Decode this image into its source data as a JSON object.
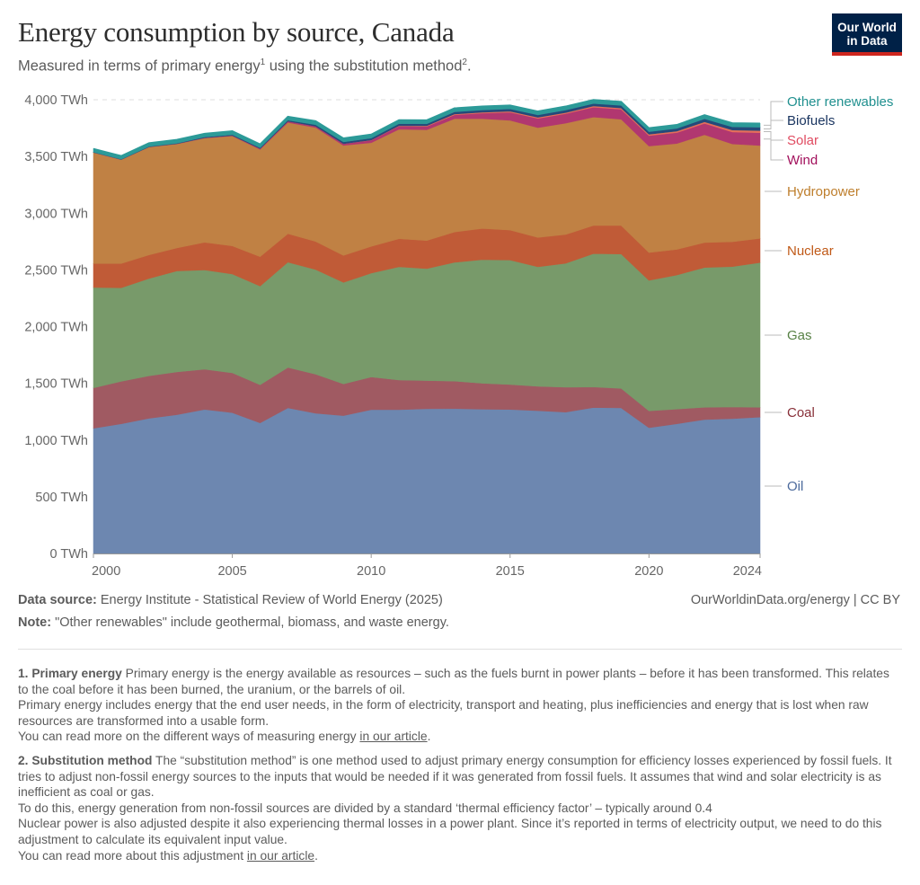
{
  "header": {
    "title": "Energy consumption by source, Canada",
    "subtitle_part1": "Measured in terms of primary energy",
    "subtitle_sup1": "1",
    "subtitle_part2": " using the substitution method",
    "subtitle_sup2": "2",
    "subtitle_part3": ".",
    "logo_line1": "Our World",
    "logo_line2": "in Data",
    "logo_colors": {
      "background": "#002147",
      "accent": "#ce261e"
    }
  },
  "chart_data": {
    "type": "area",
    "stacked": true,
    "title": "Energy consumption by source, Canada",
    "xlabel": "",
    "ylabel": "",
    "unit": "TWh",
    "x": [
      2000,
      2001,
      2002,
      2003,
      2004,
      2005,
      2006,
      2007,
      2008,
      2009,
      2010,
      2011,
      2012,
      2013,
      2014,
      2015,
      2016,
      2017,
      2018,
      2019,
      2020,
      2021,
      2022,
      2023,
      2024
    ],
    "xlim": [
      2000,
      2024
    ],
    "ylim": [
      0,
      4000
    ],
    "x_ticks": [
      "2000",
      "2005",
      "2010",
      "2015",
      "2020",
      "2024"
    ],
    "x_tick_values": [
      2000,
      2005,
      2010,
      2015,
      2020,
      2024
    ],
    "y_ticks": [
      "0 TWh",
      "500 TWh",
      "1,000 TWh",
      "1,500 TWh",
      "2,000 TWh",
      "2,500 TWh",
      "3,000 TWh",
      "3,500 TWh",
      "4,000 TWh"
    ],
    "y_tick_values": [
      0,
      500,
      1000,
      1500,
      2000,
      2500,
      3000,
      3500,
      4000
    ],
    "grid": "horizontal-dashed",
    "legend_position": "right",
    "series": [
      {
        "name": "Oil",
        "color": "#6d87b0",
        "label_color": "#4c6a9c",
        "values": [
          1103,
          1143,
          1191,
          1223,
          1270,
          1241,
          1151,
          1283,
          1236,
          1215,
          1267,
          1267,
          1275,
          1277,
          1272,
          1270,
          1259,
          1246,
          1286,
          1283,
          1109,
          1143,
          1180,
          1188,
          1202
        ]
      },
      {
        "name": "Coal",
        "color": "#a05a62",
        "label_color": "#883039",
        "values": [
          357,
          375,
          375,
          377,
          354,
          351,
          336,
          357,
          344,
          280,
          289,
          262,
          249,
          242,
          228,
          219,
          214,
          219,
          182,
          172,
          148,
          130,
          109,
          104,
          87
        ]
      },
      {
        "name": "Gas",
        "color": "#789a6a",
        "label_color": "#578145",
        "values": [
          885,
          824,
          858,
          890,
          876,
          871,
          870,
          928,
          923,
          895,
          915,
          998,
          987,
          1047,
          1090,
          1098,
          1054,
          1093,
          1175,
          1185,
          1151,
          1182,
          1232,
          1237,
          1275
        ]
      },
      {
        "name": "Nuclear",
        "color": "#c05b37",
        "label_color": "#c05917",
        "values": [
          211,
          214,
          208,
          203,
          243,
          248,
          259,
          251,
          248,
          237,
          236,
          248,
          248,
          268,
          275,
          264,
          259,
          254,
          248,
          251,
          245,
          225,
          220,
          219,
          214
        ]
      },
      {
        "name": "Hydropower",
        "color": "#c08144",
        "label_color": "#be7e2c",
        "values": [
          979,
          916,
          951,
          917,
          919,
          970,
          946,
          981,
          1004,
          971,
          914,
          965,
          976,
          999,
          968,
          968,
          968,
          981,
          956,
          937,
          938,
          934,
          950,
          862,
          819
        ]
      },
      {
        "name": "Wind",
        "color": "#b13770",
        "label_color": "#a2105c",
        "values": [
          1,
          1,
          1,
          2,
          3,
          4,
          7,
          10,
          11,
          14,
          22,
          28,
          30,
          34,
          49,
          71,
          81,
          84,
          87,
          88,
          93,
          96,
          100,
          106,
          112
        ]
      },
      {
        "name": "Solar",
        "color": "#e56e5a",
        "label_color": "#e04b61",
        "values": [
          0,
          0,
          0,
          0,
          0,
          0,
          0,
          0,
          0,
          1,
          2,
          3,
          5,
          7,
          8,
          9,
          10,
          10,
          11,
          11,
          12,
          13,
          14,
          17,
          19
        ]
      },
      {
        "name": "Biofuels",
        "color": "#24497a",
        "label_color": "#1a3560",
        "values": [
          2,
          3,
          4,
          5,
          6,
          7,
          8,
          10,
          14,
          15,
          17,
          18,
          18,
          19,
          20,
          20,
          21,
          22,
          22,
          23,
          22,
          24,
          27,
          28,
          30
        ]
      },
      {
        "name": "Other renewables",
        "color": "#2c9a98",
        "label_color": "#20908f",
        "values": [
          30,
          30,
          31,
          31,
          31,
          32,
          32,
          32,
          33,
          33,
          33,
          33,
          33,
          33,
          33,
          33,
          33,
          33,
          33,
          33,
          33,
          33,
          34,
          34,
          34
        ]
      }
    ]
  },
  "footer": {
    "source_label": "Data source:",
    "source_text": " Energy Institute - Statistical Review of World Energy (2025)",
    "url_text": "OurWorldinData.org/energy | CC BY",
    "note_label": "Note:",
    "note_text": " \"Other renewables\" include geothermal, biomass, and waste energy."
  },
  "notes": {
    "n1_title": "1. Primary energy",
    "n1_p1": " Primary energy is the energy available as resources – such as the fuels burnt in power plants – before it has been transformed. This relates to the coal before it has been burned, the uranium, or the barrels of oil.",
    "n1_p2": "Primary energy includes energy that the end user needs, in the form of electricity, transport and heating, plus inefficiencies and energy that is lost when raw resources are transformed into a usable form.",
    "n1_p3_prefix": "You can read more on the different ways of measuring energy ",
    "n1_link": "in our article",
    "n1_p3_suffix": ".",
    "n2_title": "2. Substitution method",
    "n2_p1": " The “substitution method” is one method used to adjust primary energy consumption for efficiency losses experienced by fossil fuels. It tries to adjust non-fossil energy sources to the inputs that would be needed if it was generated from fossil fuels. It assumes that wind and solar electricity is as inefficient as coal or gas.",
    "n2_p2": "To do this, energy generation from non-fossil sources are divided by a standard ‘thermal efficiency factor’ – typically around 0.4",
    "n2_p3": "Nuclear power is also adjusted despite it also experiencing thermal losses in a power plant. Since it’s reported in terms of electricity output, we need to do this adjustment to calculate its equivalent input value.",
    "n2_p4_prefix": "You can read more about this adjustment ",
    "n2_link": "in our article",
    "n2_p4_suffix": "."
  }
}
